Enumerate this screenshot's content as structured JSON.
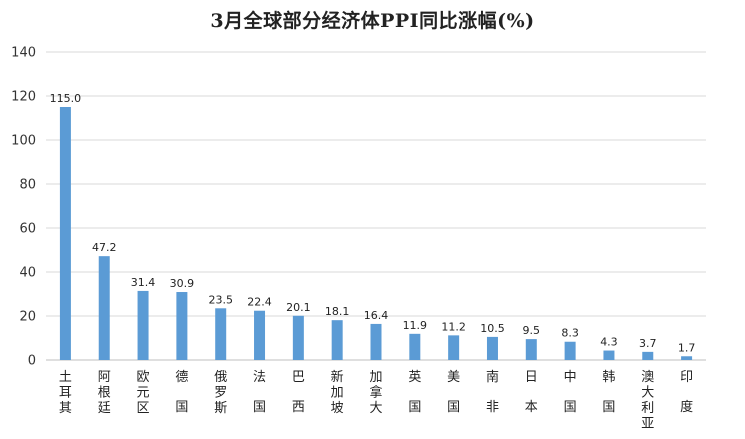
{
  "chart_data": {
    "type": "bar",
    "title": "3月全球部分经济体PPI同比涨幅(%)",
    "categories": [
      "土耳其",
      "阿根廷",
      "欧元区",
      "德国",
      "俄罗斯",
      "法国",
      "巴西",
      "新加坡",
      "加拿大",
      "英国",
      "美国",
      "南非",
      "日本",
      "中国",
      "韩国",
      "澳大利亚",
      "印度"
    ],
    "values": [
      115.0,
      47.2,
      31.4,
      30.9,
      23.5,
      22.4,
      20.1,
      18.1,
      16.4,
      11.9,
      11.2,
      10.5,
      9.5,
      8.3,
      4.3,
      3.7,
      1.7
    ],
    "value_labels": [
      "115.0",
      "47.2",
      "31.4",
      "30.9",
      "23.5",
      "22.4",
      "20.1",
      "18.1",
      "16.4",
      "11.9",
      "11.2",
      "10.5",
      "9.5",
      "8.3",
      "4.3",
      "3.7",
      "1.7"
    ],
    "y_ticks": [
      "0",
      "20",
      "40",
      "60",
      "80",
      "100",
      "120",
      "140"
    ],
    "ylim": [
      0,
      140
    ],
    "grid": true,
    "legend": "none",
    "bar_color": "#5b9bd5"
  }
}
